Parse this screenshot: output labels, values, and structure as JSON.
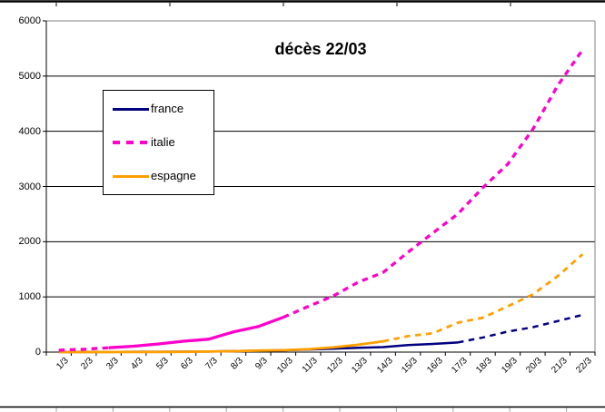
{
  "frame": {
    "top_tick_start": 62,
    "top_tick_step": 125,
    "bottom_tick_start": 62,
    "bottom_tick_step": 62.4,
    "tick_color": "#999999",
    "line_color": "#000000"
  },
  "axes_colors": {
    "axis": "#000000",
    "gridline": "#000000",
    "plot_border": "#808080"
  },
  "legend": {
    "items_from_series": true
  },
  "chart_data": {
    "type": "line",
    "title": "décès 22/03",
    "categories": [
      "1/3",
      "2/3",
      "3/3",
      "4/3",
      "5/3",
      "6/3",
      "7/3",
      "8/3",
      "9/3",
      "10/3",
      "11/3",
      "12/3",
      "13/3",
      "14/3",
      "15/3",
      "16/3",
      "17/3",
      "18/3",
      "19/3",
      "20/3",
      "21/3",
      "22/3"
    ],
    "xlabel": "",
    "ylabel": "",
    "ylim": [
      0,
      6000
    ],
    "y_ticks": [
      0,
      1000,
      2000,
      3000,
      4000,
      5000,
      6000
    ],
    "grid": true,
    "legend_position": "inside-upper-left",
    "series": [
      {
        "name": "france",
        "color": "#000080",
        "values": [
          2,
          3,
          4,
          6,
          7,
          9,
          11,
          19,
          25,
          33,
          48,
          61,
          79,
          91,
          127,
          148,
          175,
          264,
          372,
          450,
          562,
          674
        ],
        "segments": [
          {
            "from": 0,
            "to": 16,
            "style": "solid"
          },
          {
            "from": 16,
            "to": 21,
            "style": "dashed"
          }
        ]
      },
      {
        "name": "italie",
        "color": "#FF00CC",
        "values": [
          34,
          52,
          79,
          107,
          148,
          197,
          233,
          366,
          463,
          631,
          827,
          1016,
          1266,
          1441,
          1809,
          2158,
          2503,
          2978,
          3405,
          4032,
          4825,
          5476
        ],
        "segments": [
          {
            "from": 0,
            "to": 2,
            "style": "dashed"
          },
          {
            "from": 2,
            "to": 9,
            "style": "solid"
          },
          {
            "from": 9,
            "to": 21,
            "style": "dashed"
          }
        ]
      },
      {
        "name": "espagne",
        "color": "#FFA000",
        "values": [
          0,
          0,
          1,
          2,
          3,
          5,
          10,
          17,
          28,
          35,
          54,
          86,
          133,
          195,
          289,
          342,
          533,
          623,
          830,
          1043,
          1375,
          1772
        ],
        "segments": [
          {
            "from": 0,
            "to": 13,
            "style": "solid"
          },
          {
            "from": 13,
            "to": 21,
            "style": "dashed"
          }
        ]
      }
    ]
  }
}
